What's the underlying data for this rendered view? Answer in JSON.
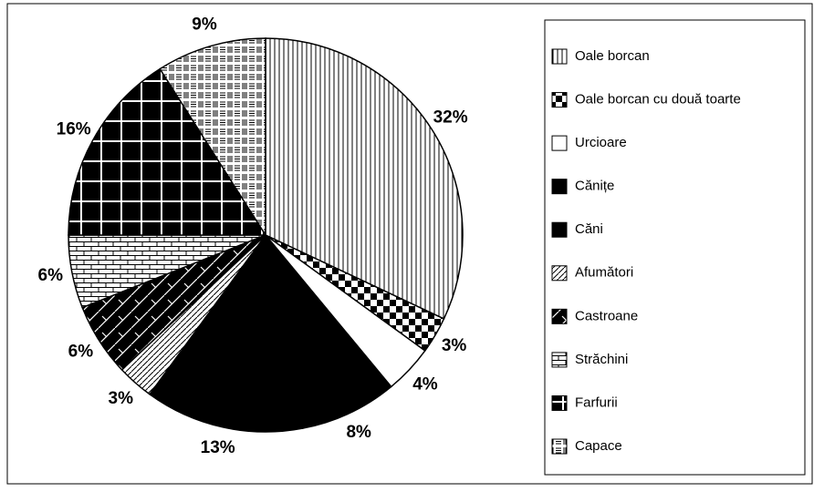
{
  "chart_data": {
    "type": "pie",
    "categories": [
      "Oale borcan",
      "Oale borcan cu două toarte",
      "Urcioare",
      "Cănițe",
      "Căni",
      "Afumători",
      "Castroane",
      "Străchini",
      "Farfurii",
      "Capace"
    ],
    "values": [
      32,
      3,
      4,
      8,
      13,
      3,
      6,
      6,
      16,
      9
    ],
    "value_labels": [
      "32%",
      "3%",
      "4%",
      "8%",
      "13%",
      "3%",
      "6%",
      "6%",
      "16%",
      "9%"
    ],
    "patterns": [
      "vertical-lines",
      "checker",
      "white",
      "black",
      "black",
      "diagonal-lines",
      "herringbone",
      "brick",
      "grid",
      "dashes"
    ],
    "legend": "right"
  }
}
